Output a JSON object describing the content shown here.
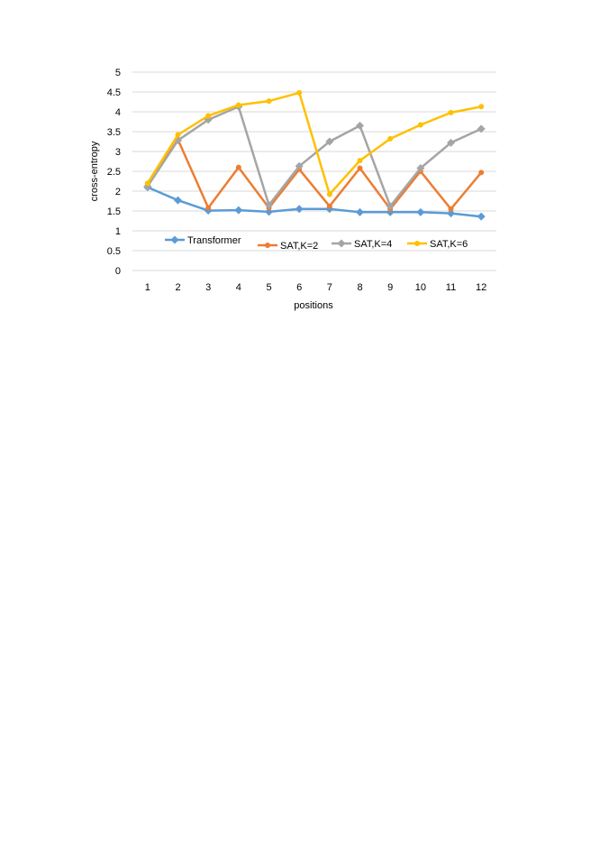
{
  "chart_data": {
    "type": "line",
    "xlabel": "positions",
    "ylabel": "cross-entropy",
    "x": [
      1,
      2,
      3,
      4,
      5,
      6,
      7,
      8,
      9,
      10,
      11,
      12
    ],
    "ylim": [
      0,
      5
    ],
    "yticks": [
      0,
      0.5,
      1,
      1.5,
      2,
      2.5,
      3,
      3.5,
      4,
      4.5,
      5
    ],
    "ytick_labels": [
      "0",
      "0.5",
      "1",
      "1.5",
      "2",
      "2.5",
      "3",
      "3.5",
      "4",
      "4.5",
      "5"
    ],
    "grid": true,
    "legend_position": "inside, lower-middle",
    "series": [
      {
        "name": "Transformer",
        "color": "#5b9bd5",
        "marker": "diamond",
        "values": [
          2.1,
          1.77,
          1.51,
          1.52,
          1.48,
          1.55,
          1.55,
          1.47,
          1.47,
          1.47,
          1.44,
          1.36
        ]
      },
      {
        "name": "SAT,K=2",
        "color": "#ed7d31",
        "marker": "circle",
        "values": [
          2.15,
          3.3,
          1.58,
          2.6,
          1.58,
          2.55,
          1.62,
          2.58,
          1.55,
          2.5,
          1.55,
          2.47
        ]
      },
      {
        "name": "SAT,K=4",
        "color": "#a5a5a5",
        "marker": "diamond",
        "values": [
          2.12,
          3.28,
          3.8,
          4.13,
          1.65,
          2.63,
          3.25,
          3.65,
          1.62,
          2.58,
          3.22,
          3.57
        ]
      },
      {
        "name": "SAT,K=6",
        "color": "#ffc000",
        "marker": "circle",
        "values": [
          2.2,
          3.42,
          3.9,
          4.17,
          4.27,
          4.48,
          1.92,
          2.77,
          3.32,
          3.67,
          3.98,
          4.13
        ]
      }
    ]
  }
}
